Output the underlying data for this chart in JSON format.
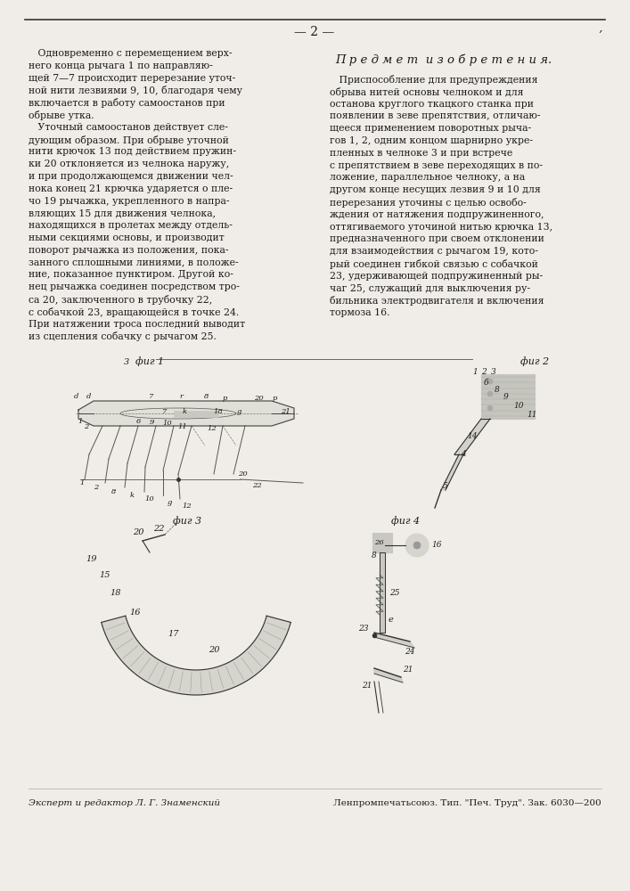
{
  "page_number": "— 2 —",
  "background_color": "#f0ede8",
  "text_color": "#1a1a1a",
  "top_line_color": "#333333",
  "left_column_text": [
    "   Одновременно с перемещением верх-",
    "него конца рычага 1 по направляю-",
    "щей 7—7 происходит перерезание уточ-",
    "ной нити лезвиями 9, 10, благодаря чему",
    "включается в работу самоостанов при",
    "обрыве утка.",
    "   Уточный самоостанов действует сле-",
    "дующим образом. При обрыве уточной",
    "нити крючок 13 под действием пружин-",
    "ки 20 отклоняется из челнока наружу,",
    "и при продолжающемся движении чел-",
    "нока конец 21 крючка ударяется о пле-",
    "чо 19 рычажка, укрепленного в напра-",
    "вляющих 15 для движения челнока,",
    "находящихся в пролетах между отдель-",
    "ными секциями основы, и производит",
    "поворот рычажка из положения, пока-",
    "занного сплошными линиями, в положе-",
    "ние, показанное пунктиром. Другой ко-",
    "нец рычажка соединен посредством тро-",
    "са 20, заключенного в трубочку 22,",
    "с собачкой 23, вращающейся в точке 24.",
    "При натяжении троса последний выводит",
    "из сцепления собачку с рычагом 25."
  ],
  "right_column_title": "П р е д м е т  и з о б р е т е н и я.",
  "right_column_text": [
    "   Приспособление для предупреждения",
    "обрыва нитей основы челноком и для",
    "останова круглого ткацкого станка при",
    "появлении в зеве препятствия, отличаю-",
    "щееся применением поворотных рыча-",
    "гов 1, 2, одним концом шарнирно укре-",
    "пленных в челноке 3 и при встрече",
    "с препятствием в зеве переходящих в по-",
    "ложение, параллельное челноку, а на",
    "другом конце несущих лезвия 9 и 10 для",
    "перерезания уточины с целью освобо-",
    "ждения от натяжения подпружиненного,",
    "оттягиваемого уточиной нитью крючка 13,",
    "предназначенного при своем отклонении",
    "для взаимодействия с рычагом 19, кото-",
    "рый соединен гибкой связью с собачкой",
    "23, удерживающей подпружиненный ры-",
    "чаг 25, служащий для выключения ру-",
    "бильника электродвигателя и включения",
    "тормоза 16."
  ],
  "footer_left": "Эксперт и редактор Л. Г. Знаменский",
  "footer_right": "Ленпромпечатьсоюз. Тип. \"Печ. Труд\". Зак. 6030—200",
  "fig1_label": "фиг 1",
  "fig2_label": "фиг 2",
  "fig3_label": "фиг 3",
  "fig4_label": "фиг 4"
}
